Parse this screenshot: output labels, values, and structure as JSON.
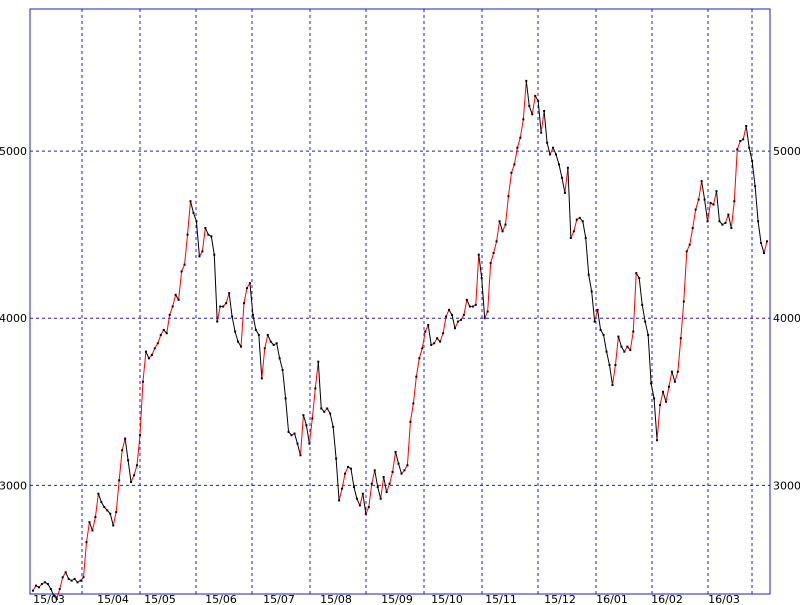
{
  "chart_data": {
    "type": "line",
    "title": "",
    "xlabel": "",
    "ylabel": "",
    "x_ticks": [
      "15/03",
      "15/04",
      "15/05",
      "15/06",
      "15/07",
      "15/08",
      "15/09",
      "15/10",
      "15/11",
      "15/12",
      "16/01",
      "16/02",
      "16/03"
    ],
    "y_ticks": [
      3000,
      4000,
      5000
    ],
    "ylim": [
      2350,
      5850
    ],
    "grid": true,
    "up_color": "#ff0000",
    "down_color": "#000000",
    "frame_color": "#1f1fb5",
    "grid_color": "#1f1fb5",
    "series": [
      {
        "values": [
          2370,
          2400,
          2390,
          2410,
          2420,
          2410,
          2380,
          2340,
          2320,
          2380,
          2450,
          2480,
          2440,
          2430,
          2440,
          2420,
          2430,
          2450,
          2660,
          2780,
          2730,
          2810,
          2950,
          2900,
          2870,
          2850,
          2830,
          2760,
          2840,
          3030,
          3210,
          3280,
          3150,
          3020,
          3060,
          3120,
          3300,
          3620,
          3800,
          3760,
          3780,
          3820,
          3850,
          3900,
          3930,
          3910,
          4020,
          4070,
          4140,
          4110,
          4280,
          4320,
          4500,
          4700,
          4630,
          4580,
          4370,
          4400,
          4540,
          4500,
          4490,
          4380,
          3980,
          4070,
          4070,
          4090,
          4150,
          4010,
          3920,
          3860,
          3830,
          4090,
          4180,
          4210,
          4020,
          3930,
          3900,
          3640,
          3820,
          3900,
          3860,
          3840,
          3850,
          3760,
          3690,
          3520,
          3320,
          3300,
          3310,
          3250,
          3180,
          3420,
          3360,
          3250,
          3400,
          3580,
          3740,
          3460,
          3440,
          3460,
          3430,
          3350,
          3160,
          2910,
          2980,
          3070,
          3110,
          3100,
          2990,
          2920,
          2880,
          2950,
          2830,
          2870,
          3010,
          3090,
          2990,
          2920,
          3050,
          2960,
          3010,
          3080,
          3200,
          3130,
          3070,
          3090,
          3120,
          3380,
          3490,
          3650,
          3760,
          3820,
          3920,
          3960,
          3840,
          3850,
          3880,
          3860,
          3910,
          4010,
          4050,
          4020,
          3940,
          3980,
          3990,
          4020,
          4110,
          4070,
          4070,
          4080,
          4380,
          4240,
          4000,
          4040,
          4330,
          4390,
          4460,
          4580,
          4520,
          4560,
          4730,
          4870,
          4920,
          5020,
          5080,
          5190,
          5420,
          5270,
          5220,
          5330,
          5300,
          5110,
          5240,
          5050,
          4980,
          5020,
          4980,
          4920,
          4840,
          4750,
          4900,
          4480,
          4520,
          4590,
          4600,
          4580,
          4480,
          4260,
          4160,
          3980,
          4050,
          3930,
          3900,
          3800,
          3720,
          3600,
          3720,
          3890,
          3830,
          3800,
          3830,
          3810,
          3920,
          4270,
          4240,
          4080,
          3980,
          3900,
          3610,
          3520,
          3270,
          3480,
          3560,
          3500,
          3590,
          3680,
          3620,
          3680,
          3880,
          4100,
          4400,
          4440,
          4540,
          4650,
          4710,
          4820,
          4710,
          4580,
          4690,
          4680,
          4760,
          4580,
          4560,
          4570,
          4620,
          4540,
          4700,
          5010,
          5060,
          5070,
          5150,
          5020,
          4940,
          4790,
          4580,
          4450,
          4390,
          4460
        ]
      }
    ]
  }
}
